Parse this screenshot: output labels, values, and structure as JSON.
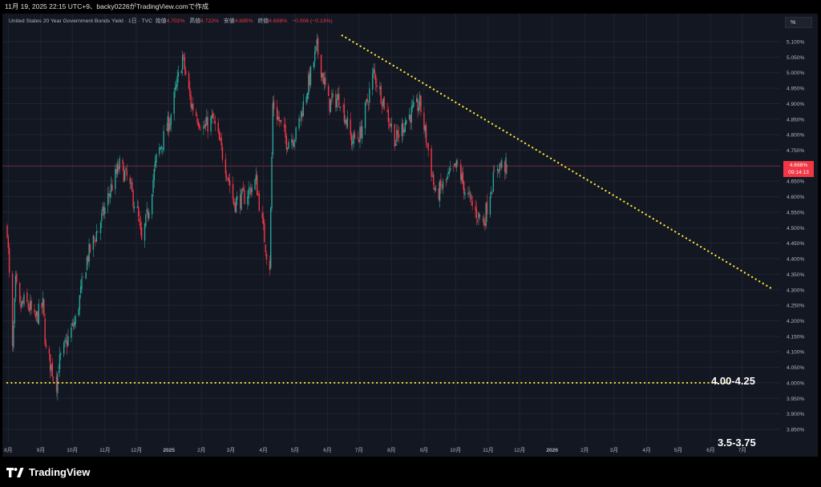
{
  "header": {
    "caption": "11月 19, 2025 22:15 UTC+9、backy0226がTradingView.comで作成"
  },
  "legend": {
    "symbol": "United States 20 Year Government Bonds Yield · 1日 · TVC",
    "open_label": "始値",
    "open": "4.702%",
    "high_label": "高値",
    "high": "4.722%",
    "low_label": "安値",
    "low": "4.695%",
    "close_label": "終値",
    "close": "4.698%",
    "change": "−0.006 (−0.13%)"
  },
  "unit_button": "%",
  "price_tag": {
    "price": "4.698%",
    "countdown": "09:14:13"
  },
  "annotations": {
    "support_label": "4.00-4.25",
    "lower_label": "3.5-3.75"
  },
  "footer": {
    "brand": "TradingView"
  },
  "colors": {
    "background": "#131722",
    "up": "#26a69a",
    "down": "#f23645",
    "trendline": "#ffeb3b",
    "grid": "#1f2433",
    "axis_text": "#b2b5be"
  },
  "chart_data": {
    "type": "candlestick",
    "title": "United States 20 Year Government Bonds Yield",
    "interval": "1日",
    "source": "TVC",
    "y_unit": "%",
    "ylim": [
      3.85,
      5.1
    ],
    "yticks": [
      "5.100%",
      "5.050%",
      "5.000%",
      "4.950%",
      "4.900%",
      "4.850%",
      "4.800%",
      "4.750%",
      "4.700%",
      "4.650%",
      "4.600%",
      "4.550%",
      "4.500%",
      "4.450%",
      "4.400%",
      "4.350%",
      "4.300%",
      "4.250%",
      "4.200%",
      "4.150%",
      "4.100%",
      "4.050%",
      "4.000%",
      "3.950%",
      "3.900%",
      "3.850%"
    ],
    "xticks": [
      "8月",
      "9月",
      "10月",
      "11月",
      "12月",
      "2025",
      "2月",
      "3月",
      "4月",
      "5月",
      "6月",
      "7月",
      "8月",
      "9月",
      "10月",
      "11月",
      "12月",
      "2026",
      "2月",
      "3月",
      "4月",
      "5月",
      "6月",
      "7月"
    ],
    "grid": true,
    "last": {
      "open": 4.702,
      "high": 4.722,
      "low": 4.695,
      "close": 4.698
    },
    "price_line": 4.698,
    "path": [
      [
        "2024-07-31",
        4.5
      ],
      [
        "2024-08-05",
        4.1
      ],
      [
        "2024-08-08",
        4.32
      ],
      [
        "2024-08-12",
        4.24
      ],
      [
        "2024-08-16",
        4.26
      ],
      [
        "2024-08-22",
        4.24
      ],
      [
        "2024-08-26",
        4.2
      ],
      [
        "2024-09-03",
        4.25
      ],
      [
        "2024-09-06",
        4.1
      ],
      [
        "2024-09-16",
        4.0
      ],
      [
        "2024-09-18",
        4.06
      ],
      [
        "2024-09-30",
        4.17
      ],
      [
        "2024-10-04",
        4.2
      ],
      [
        "2024-10-15",
        4.4
      ],
      [
        "2024-10-31",
        4.55
      ],
      [
        "2024-11-06",
        4.62
      ],
      [
        "2024-11-15",
        4.7
      ],
      [
        "2024-11-22",
        4.66
      ],
      [
        "2024-12-02",
        4.55
      ],
      [
        "2024-12-06",
        4.45
      ],
      [
        "2024-12-12",
        4.55
      ],
      [
        "2024-12-20",
        4.72
      ],
      [
        "2025-01-02",
        4.85
      ],
      [
        "2025-01-14",
        5.05
      ],
      [
        "2025-01-22",
        4.9
      ],
      [
        "2025-02-03",
        4.82
      ],
      [
        "2025-02-12",
        4.85
      ],
      [
        "2025-02-24",
        4.7
      ],
      [
        "2025-03-04",
        4.58
      ],
      [
        "2025-03-14",
        4.6
      ],
      [
        "2025-03-25",
        4.65
      ],
      [
        "2025-04-04",
        4.42
      ],
      [
        "2025-04-07",
        4.38
      ],
      [
        "2025-04-10",
        4.9
      ],
      [
        "2025-04-23",
        4.78
      ],
      [
        "2025-05-02",
        4.8
      ],
      [
        "2025-05-15",
        4.98
      ],
      [
        "2025-05-22",
        5.08
      ],
      [
        "2025-06-02",
        4.9
      ],
      [
        "2025-06-13",
        4.92
      ],
      [
        "2025-06-24",
        4.78
      ],
      [
        "2025-07-02",
        4.8
      ],
      [
        "2025-07-15",
        5.0
      ],
      [
        "2025-07-25",
        4.9
      ],
      [
        "2025-08-05",
        4.78
      ],
      [
        "2025-08-15",
        4.85
      ],
      [
        "2025-08-28",
        4.9
      ],
      [
        "2025-09-05",
        4.75
      ],
      [
        "2025-09-12",
        4.6
      ],
      [
        "2025-09-24",
        4.66
      ],
      [
        "2025-10-03",
        4.7
      ],
      [
        "2025-10-10",
        4.62
      ],
      [
        "2025-10-20",
        4.55
      ],
      [
        "2025-10-28",
        4.52
      ],
      [
        "2025-11-03",
        4.62
      ],
      [
        "2025-11-10",
        4.7
      ],
      [
        "2025-11-19",
        4.698
      ]
    ],
    "trendlines": [
      {
        "from": [
          "2025-06-15",
          5.12
        ],
        "to": [
          "2026-07-31",
          4.3
        ]
      },
      {
        "from": [
          "2024-07-31",
          4.0
        ],
        "to": [
          "2026-06-20",
          4.0
        ]
      }
    ]
  }
}
